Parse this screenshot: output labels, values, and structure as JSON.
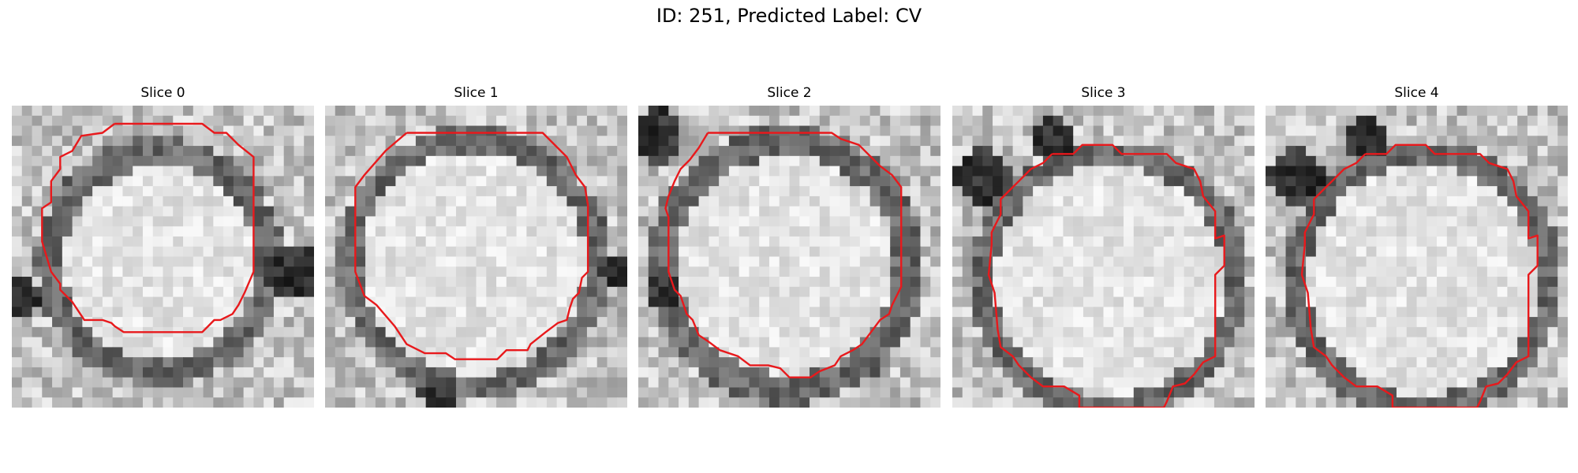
{
  "figure": {
    "title": "ID: 251, Predicted Label: CV"
  },
  "contour_color": "#e8191c",
  "slices": [
    {
      "label": "Slice 0",
      "center": [
        0.49,
        0.52
      ],
      "ring_radius": 0.38,
      "inner_radius": 0.32,
      "dark_blobs": [
        [
          0.93,
          0.55,
          0.09
        ],
        [
          0.03,
          0.63,
          0.06
        ]
      ],
      "contour": [
        [
          0.34,
          0.06
        ],
        [
          0.63,
          0.06
        ],
        [
          0.67,
          0.09
        ],
        [
          0.71,
          0.09
        ],
        [
          0.75,
          0.13
        ],
        [
          0.8,
          0.17
        ],
        [
          0.8,
          0.55
        ],
        [
          0.77,
          0.62
        ],
        [
          0.75,
          0.66
        ],
        [
          0.73,
          0.69
        ],
        [
          0.69,
          0.71
        ],
        [
          0.67,
          0.71
        ],
        [
          0.65,
          0.73
        ],
        [
          0.63,
          0.75
        ],
        [
          0.37,
          0.75
        ],
        [
          0.34,
          0.73
        ],
        [
          0.33,
          0.72
        ],
        [
          0.3,
          0.71
        ],
        [
          0.24,
          0.71
        ],
        [
          0.2,
          0.65
        ],
        [
          0.16,
          0.61
        ],
        [
          0.16,
          0.59
        ],
        [
          0.13,
          0.55
        ],
        [
          0.1,
          0.45
        ],
        [
          0.1,
          0.34
        ],
        [
          0.13,
          0.32
        ],
        [
          0.13,
          0.25
        ],
        [
          0.16,
          0.21
        ],
        [
          0.16,
          0.17
        ],
        [
          0.2,
          0.15
        ],
        [
          0.23,
          0.1
        ],
        [
          0.3,
          0.09
        ],
        [
          0.34,
          0.06
        ]
      ]
    },
    {
      "label": "Slice 1",
      "center": [
        0.49,
        0.52
      ],
      "ring_radius": 0.42,
      "inner_radius": 0.37,
      "dark_blobs": [
        [
          0.37,
          0.95,
          0.06
        ],
        [
          0.96,
          0.55,
          0.05
        ]
      ],
      "contour": [
        [
          0.27,
          0.09
        ],
        [
          0.72,
          0.09
        ],
        [
          0.8,
          0.17
        ],
        [
          0.83,
          0.23
        ],
        [
          0.86,
          0.27
        ],
        [
          0.87,
          0.33
        ],
        [
          0.87,
          0.55
        ],
        [
          0.85,
          0.57
        ],
        [
          0.84,
          0.62
        ],
        [
          0.82,
          0.64
        ],
        [
          0.81,
          0.67
        ],
        [
          0.8,
          0.71
        ],
        [
          0.77,
          0.72
        ],
        [
          0.73,
          0.75
        ],
        [
          0.68,
          0.79
        ],
        [
          0.67,
          0.81
        ],
        [
          0.6,
          0.81
        ],
        [
          0.57,
          0.84
        ],
        [
          0.43,
          0.84
        ],
        [
          0.4,
          0.82
        ],
        [
          0.33,
          0.82
        ],
        [
          0.27,
          0.79
        ],
        [
          0.23,
          0.73
        ],
        [
          0.17,
          0.66
        ],
        [
          0.13,
          0.63
        ],
        [
          0.1,
          0.55
        ],
        [
          0.1,
          0.27
        ],
        [
          0.13,
          0.23
        ],
        [
          0.2,
          0.15
        ],
        [
          0.27,
          0.09
        ]
      ]
    },
    {
      "label": "Slice 2",
      "center": [
        0.49,
        0.53
      ],
      "ring_radius": 0.43,
      "inner_radius": 0.36,
      "dark_blobs": [
        [
          0.06,
          0.1,
          0.09
        ],
        [
          0.08,
          0.62,
          0.06
        ]
      ],
      "contour": [
        [
          0.23,
          0.09
        ],
        [
          0.64,
          0.09
        ],
        [
          0.67,
          0.11
        ],
        [
          0.73,
          0.13
        ],
        [
          0.77,
          0.17
        ],
        [
          0.8,
          0.2
        ],
        [
          0.84,
          0.23
        ],
        [
          0.87,
          0.27
        ],
        [
          0.87,
          0.6
        ],
        [
          0.84,
          0.66
        ],
        [
          0.83,
          0.69
        ],
        [
          0.8,
          0.71
        ],
        [
          0.77,
          0.75
        ],
        [
          0.74,
          0.79
        ],
        [
          0.71,
          0.81
        ],
        [
          0.67,
          0.83
        ],
        [
          0.65,
          0.86
        ],
        [
          0.6,
          0.88
        ],
        [
          0.57,
          0.9
        ],
        [
          0.5,
          0.9
        ],
        [
          0.47,
          0.87
        ],
        [
          0.43,
          0.86
        ],
        [
          0.37,
          0.86
        ],
        [
          0.33,
          0.83
        ],
        [
          0.27,
          0.81
        ],
        [
          0.23,
          0.78
        ],
        [
          0.2,
          0.76
        ],
        [
          0.18,
          0.71
        ],
        [
          0.16,
          0.69
        ],
        [
          0.14,
          0.63
        ],
        [
          0.12,
          0.61
        ],
        [
          0.1,
          0.55
        ],
        [
          0.1,
          0.37
        ],
        [
          0.09,
          0.34
        ],
        [
          0.1,
          0.3
        ],
        [
          0.12,
          0.25
        ],
        [
          0.14,
          0.21
        ],
        [
          0.17,
          0.18
        ],
        [
          0.2,
          0.14
        ],
        [
          0.23,
          0.09
        ]
      ]
    },
    {
      "label": "Slice 3",
      "center": [
        0.52,
        0.58
      ],
      "ring_radius": 0.43,
      "inner_radius": 0.38,
      "dark_blobs": [
        [
          0.1,
          0.23,
          0.09
        ],
        [
          0.33,
          0.11,
          0.07
        ]
      ],
      "contour": [
        [
          0.33,
          0.16
        ],
        [
          0.4,
          0.16
        ],
        [
          0.43,
          0.13
        ],
        [
          0.53,
          0.13
        ],
        [
          0.56,
          0.16
        ],
        [
          0.71,
          0.16
        ],
        [
          0.74,
          0.19
        ],
        [
          0.8,
          0.21
        ],
        [
          0.82,
          0.25
        ],
        [
          0.83,
          0.3
        ],
        [
          0.87,
          0.35
        ],
        [
          0.87,
          0.44
        ],
        [
          0.9,
          0.43
        ],
        [
          0.9,
          0.53
        ],
        [
          0.87,
          0.56
        ],
        [
          0.87,
          0.83
        ],
        [
          0.83,
          0.85
        ],
        [
          0.8,
          0.89
        ],
        [
          0.77,
          0.92
        ],
        [
          0.73,
          0.93
        ],
        [
          0.71,
          0.98
        ],
        [
          0.7,
          1.0
        ],
        [
          0.42,
          1.0
        ],
        [
          0.42,
          0.96
        ],
        [
          0.37,
          0.93
        ],
        [
          0.3,
          0.93
        ],
        [
          0.26,
          0.9
        ],
        [
          0.22,
          0.86
        ],
        [
          0.2,
          0.83
        ],
        [
          0.16,
          0.8
        ],
        [
          0.15,
          0.74
        ],
        [
          0.14,
          0.62
        ],
        [
          0.12,
          0.56
        ],
        [
          0.13,
          0.46
        ],
        [
          0.13,
          0.42
        ],
        [
          0.15,
          0.38
        ],
        [
          0.16,
          0.36
        ],
        [
          0.16,
          0.31
        ],
        [
          0.2,
          0.27
        ],
        [
          0.22,
          0.25
        ],
        [
          0.26,
          0.21
        ],
        [
          0.3,
          0.19
        ],
        [
          0.33,
          0.16
        ]
      ]
    },
    {
      "label": "Slice 4",
      "center": [
        0.52,
        0.58
      ],
      "ring_radius": 0.43,
      "inner_radius": 0.38,
      "dark_blobs": [
        [
          0.1,
          0.23,
          0.09
        ],
        [
          0.33,
          0.11,
          0.07
        ]
      ],
      "contour": [
        [
          0.33,
          0.16
        ],
        [
          0.4,
          0.16
        ],
        [
          0.43,
          0.13
        ],
        [
          0.53,
          0.13
        ],
        [
          0.56,
          0.16
        ],
        [
          0.71,
          0.16
        ],
        [
          0.74,
          0.19
        ],
        [
          0.8,
          0.21
        ],
        [
          0.82,
          0.25
        ],
        [
          0.83,
          0.3
        ],
        [
          0.87,
          0.35
        ],
        [
          0.87,
          0.44
        ],
        [
          0.9,
          0.43
        ],
        [
          0.9,
          0.53
        ],
        [
          0.87,
          0.56
        ],
        [
          0.87,
          0.83
        ],
        [
          0.83,
          0.85
        ],
        [
          0.8,
          0.89
        ],
        [
          0.77,
          0.92
        ],
        [
          0.73,
          0.93
        ],
        [
          0.71,
          0.98
        ],
        [
          0.7,
          1.0
        ],
        [
          0.42,
          1.0
        ],
        [
          0.42,
          0.96
        ],
        [
          0.37,
          0.93
        ],
        [
          0.3,
          0.93
        ],
        [
          0.26,
          0.9
        ],
        [
          0.22,
          0.86
        ],
        [
          0.2,
          0.83
        ],
        [
          0.16,
          0.8
        ],
        [
          0.15,
          0.74
        ],
        [
          0.14,
          0.62
        ],
        [
          0.12,
          0.56
        ],
        [
          0.13,
          0.46
        ],
        [
          0.13,
          0.42
        ],
        [
          0.15,
          0.38
        ],
        [
          0.16,
          0.36
        ],
        [
          0.16,
          0.31
        ],
        [
          0.2,
          0.27
        ],
        [
          0.22,
          0.25
        ],
        [
          0.26,
          0.21
        ],
        [
          0.3,
          0.19
        ],
        [
          0.33,
          0.16
        ]
      ]
    }
  ]
}
